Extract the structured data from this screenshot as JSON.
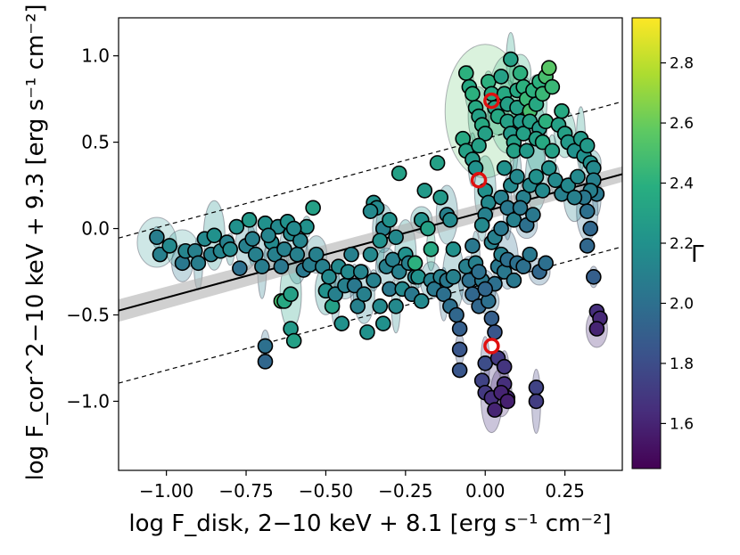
{
  "chart_data": {
    "type": "scatter",
    "xlabel": "log F_disk, 2−10 keV + 8.1  [erg s⁻¹ cm⁻²]",
    "ylabel": "log F_cor^2−10 keV + 9.3  [erg s⁻¹ cm⁻²]",
    "xlim": [
      -1.15,
      0.43
    ],
    "ylim": [
      -1.4,
      1.22
    ],
    "x_ticks": [
      "−1.00",
      "−0.75",
      "−0.50",
      "−0.25",
      "0.00",
      "0.25"
    ],
    "y_ticks": [
      "1.0",
      "0.5",
      "0.0",
      "−0.5",
      "−1.0"
    ],
    "colorbar": {
      "label": "Γ",
      "range": [
        1.45,
        2.95
      ],
      "ticks": [
        "1.6",
        "1.8",
        "2.0",
        "2.2",
        "2.4",
        "2.6",
        "2.8"
      ],
      "colormap": "viridis"
    },
    "fit_line": {
      "slope": 0.5,
      "intercept": 0.1,
      "offsets": [
        -0.42,
        0.0,
        0.42
      ]
    },
    "highlighted": [
      {
        "x": 0.02,
        "y": 0.74
      },
      {
        "x": -0.02,
        "y": 0.28
      },
      {
        "x": 0.02,
        "y": -0.68
      }
    ],
    "points": [
      [
        -1.03,
        -0.05,
        2.08
      ],
      [
        -1.02,
        -0.15,
        2.1
      ],
      [
        -0.99,
        -0.1,
        2.15
      ],
      [
        -0.95,
        -0.2,
        2.05
      ],
      [
        -0.94,
        -0.13,
        2.12
      ],
      [
        -0.91,
        -0.13,
        2.1
      ],
      [
        -0.9,
        -0.2,
        2.08
      ],
      [
        -0.88,
        -0.06,
        2.15
      ],
      [
        -0.86,
        -0.15,
        2.1
      ],
      [
        -0.85,
        -0.04,
        2.2
      ],
      [
        -0.83,
        -0.13,
        2.12
      ],
      [
        -0.81,
        -0.08,
        2.1
      ],
      [
        -0.8,
        -0.12,
        2.15
      ],
      [
        -0.78,
        0.01,
        2.2
      ],
      [
        -0.77,
        -0.23,
        2.0
      ],
      [
        -0.75,
        -0.1,
        2.1
      ],
      [
        -0.74,
        0.05,
        2.25
      ],
      [
        -0.72,
        -0.15,
        2.1
      ],
      [
        -0.7,
        -0.22,
        2.08
      ],
      [
        -0.69,
        0.03,
        2.2
      ],
      [
        -0.67,
        -0.08,
        2.15
      ],
      [
        -0.66,
        -0.15,
        2.1
      ],
      [
        -0.65,
        0.01,
        2.15
      ],
      [
        -0.64,
        -0.22,
        2.05
      ],
      [
        -0.63,
        -0.12,
        2.1
      ],
      [
        -0.62,
        0.04,
        2.2
      ],
      [
        -0.61,
        -0.03,
        2.15
      ],
      [
        -0.59,
        -0.15,
        2.1
      ],
      [
        -0.58,
        -0.07,
        2.12
      ],
      [
        -0.57,
        -0.24,
        2.05
      ],
      [
        -0.56,
        0.01,
        2.2
      ],
      [
        -0.55,
        -0.21,
        2.08
      ],
      [
        -0.54,
        0.12,
        2.3
      ],
      [
        -0.53,
        -0.15,
        2.1
      ],
      [
        -0.6,
        0.0,
        2.15
      ],
      [
        -0.68,
        -0.04,
        2.12
      ],
      [
        -0.73,
        -0.06,
        2.1
      ],
      [
        -0.64,
        -0.42,
        2.5
      ],
      [
        -0.63,
        -0.42,
        2.35
      ],
      [
        -0.61,
        -0.38,
        2.3
      ],
      [
        -0.61,
        -0.58,
        2.25
      ],
      [
        -0.6,
        -0.65,
        2.3
      ],
      [
        -0.69,
        -0.68,
        2.0
      ],
      [
        -0.69,
        -0.77,
        1.95
      ],
      [
        -0.51,
        -0.22,
        2.1
      ],
      [
        -0.5,
        -0.36,
        2.2
      ],
      [
        -0.49,
        -0.28,
        2.15
      ],
      [
        -0.48,
        -0.45,
        2.3
      ],
      [
        -0.47,
        -0.38,
        2.1
      ],
      [
        -0.46,
        -0.22,
        2.15
      ],
      [
        -0.45,
        -0.55,
        2.2
      ],
      [
        -0.44,
        -0.33,
        2.1
      ],
      [
        -0.43,
        -0.25,
        2.15
      ],
      [
        -0.42,
        -0.15,
        2.1
      ],
      [
        -0.41,
        -0.33,
        2.05
      ],
      [
        -0.4,
        -0.45,
        2.1
      ],
      [
        -0.39,
        -0.25,
        2.12
      ],
      [
        -0.38,
        -0.38,
        2.1
      ],
      [
        -0.37,
        -0.6,
        2.2
      ],
      [
        -0.36,
        -0.15,
        2.15
      ],
      [
        -0.35,
        -0.3,
        2.1
      ],
      [
        -0.33,
        -0.45,
        2.15
      ],
      [
        -0.32,
        -0.55,
        2.2
      ],
      [
        -0.31,
        -0.22,
        2.1
      ],
      [
        -0.3,
        -0.35,
        2.05
      ],
      [
        -0.29,
        -0.18,
        2.1
      ],
      [
        -0.28,
        -0.45,
        2.15
      ],
      [
        -0.27,
        -0.25,
        2.1
      ],
      [
        -0.26,
        -0.35,
        2.15
      ],
      [
        -0.25,
        -0.15,
        2.2
      ],
      [
        -0.24,
        -0.2,
        2.1
      ],
      [
        -0.23,
        -0.38,
        2.05
      ],
      [
        -0.22,
        -0.28,
        2.1
      ],
      [
        -0.35,
        0.15,
        2.2
      ],
      [
        -0.34,
        0.12,
        2.15
      ],
      [
        -0.32,
        0.0,
        2.1
      ],
      [
        -0.3,
        0.05,
        2.2
      ],
      [
        -0.28,
        -0.05,
        2.15
      ],
      [
        -0.33,
        -0.07,
        2.2
      ],
      [
        -0.36,
        0.1,
        2.15
      ],
      [
        -0.27,
        0.32,
        2.3
      ],
      [
        -0.2,
        0.05,
        2.2
      ],
      [
        -0.19,
        0.22,
        2.25
      ],
      [
        -0.18,
        0.0,
        2.3
      ],
      [
        -0.17,
        -0.12,
        2.35
      ],
      [
        -0.15,
        0.38,
        2.3
      ],
      [
        -0.14,
        0.18,
        2.25
      ],
      [
        -0.12,
        0.08,
        2.1
      ],
      [
        -0.11,
        0.05,
        2.15
      ],
      [
        -0.1,
        -0.12,
        2.2
      ],
      [
        -0.21,
        -0.28,
        2.2
      ],
      [
        -0.2,
        -0.42,
        2.15
      ],
      [
        -0.22,
        -0.2,
        2.4
      ],
      [
        -0.17,
        -0.3,
        2.1
      ],
      [
        -0.16,
        -0.35,
        2.05
      ],
      [
        -0.14,
        -0.28,
        2.1
      ],
      [
        -0.13,
        -0.38,
        2.0
      ],
      [
        -0.12,
        -0.3,
        2.05
      ],
      [
        -0.11,
        -0.45,
        2.0
      ],
      [
        -0.1,
        -0.28,
        2.1
      ],
      [
        -0.09,
        -0.5,
        1.95
      ],
      [
        -0.08,
        -0.58,
        1.9
      ],
      [
        -0.08,
        -0.7,
        1.85
      ],
      [
        -0.08,
        -0.82,
        1.85
      ],
      [
        -0.06,
        -0.22,
        2.1
      ],
      [
        -0.05,
        -0.3,
        2.0
      ],
      [
        -0.04,
        -0.38,
        1.95
      ],
      [
        -0.04,
        -0.1,
        2.05
      ],
      [
        -0.03,
        -0.2,
        2.1
      ],
      [
        -0.02,
        -0.45,
        1.95
      ],
      [
        -0.01,
        -0.3,
        2.05
      ],
      [
        0.01,
        -0.42,
        2.0
      ],
      [
        0.02,
        -0.08,
        2.1
      ],
      [
        0.03,
        -0.32,
        2.0
      ],
      [
        0.04,
        -0.22,
        2.05
      ],
      [
        0.05,
        -0.15,
        2.1
      ],
      [
        0.06,
        -0.25,
        2.05
      ],
      [
        0.07,
        -0.18,
        2.0
      ],
      [
        0.09,
        -0.3,
        2.05
      ],
      [
        0.1,
        -0.2,
        2.0
      ],
      [
        0.03,
        -0.05,
        2.1
      ],
      [
        0.05,
        0.0,
        2.05
      ],
      [
        -0.02,
        -0.25,
        2.0
      ],
      [
        0.0,
        -0.35,
        1.95
      ],
      [
        0.02,
        -0.52,
        1.9
      ],
      [
        0.03,
        -0.6,
        1.85
      ],
      [
        0.0,
        -0.78,
        1.8
      ],
      [
        -0.01,
        -0.88,
        1.75
      ],
      [
        0.0,
        -0.95,
        1.7
      ],
      [
        0.02,
        -0.98,
        1.65
      ],
      [
        0.03,
        -1.05,
        1.6
      ],
      [
        0.04,
        -0.75,
        1.7
      ],
      [
        0.06,
        -0.8,
        1.68
      ],
      [
        0.06,
        -0.9,
        1.65
      ],
      [
        0.07,
        -0.98,
        1.62
      ],
      [
        0.05,
        -0.95,
        1.6
      ],
      [
        0.07,
        -1.0,
        1.58
      ],
      [
        0.16,
        -0.92,
        1.75
      ],
      [
        0.16,
        -1.0,
        1.72
      ],
      [
        0.12,
        -0.22,
        2.0
      ],
      [
        0.14,
        -0.15,
        2.05
      ],
      [
        0.17,
        -0.25,
        1.95
      ],
      [
        0.19,
        -0.2,
        2.0
      ],
      [
        -0.06,
        0.9,
        2.4
      ],
      [
        -0.05,
        0.82,
        2.35
      ],
      [
        -0.04,
        0.78,
        2.4
      ],
      [
        -0.03,
        0.7,
        2.35
      ],
      [
        -0.02,
        0.65,
        2.3
      ],
      [
        -0.01,
        0.6,
        2.35
      ],
      [
        0.0,
        0.55,
        2.3
      ],
      [
        0.01,
        0.85,
        2.4
      ],
      [
        0.02,
        0.78,
        2.35
      ],
      [
        0.03,
        0.7,
        2.3
      ],
      [
        0.04,
        0.65,
        2.35
      ],
      [
        -0.07,
        0.52,
        2.35
      ],
      [
        -0.06,
        0.45,
        2.3
      ],
      [
        -0.04,
        0.4,
        2.25
      ],
      [
        -0.03,
        0.35,
        2.2
      ],
      [
        -0.02,
        0.48,
        2.3
      ],
      [
        0.0,
        0.22,
        2.2
      ],
      [
        0.01,
        0.15,
        2.15
      ],
      [
        0.0,
        0.08,
        2.1
      ],
      [
        -0.01,
        0.02,
        2.15
      ],
      [
        0.05,
        0.88,
        2.3
      ],
      [
        0.06,
        0.78,
        2.35
      ],
      [
        0.07,
        0.72,
        2.3
      ],
      [
        0.07,
        0.62,
        2.3
      ],
      [
        0.08,
        0.55,
        2.25
      ],
      [
        0.09,
        0.5,
        2.3
      ],
      [
        0.1,
        0.8,
        2.35
      ],
      [
        0.1,
        0.7,
        2.3
      ],
      [
        0.11,
        0.62,
        2.25
      ],
      [
        0.12,
        0.55,
        2.3
      ],
      [
        0.12,
        0.82,
        2.4
      ],
      [
        0.13,
        0.75,
        2.45
      ],
      [
        0.14,
        0.68,
        2.5
      ],
      [
        0.15,
        0.8,
        2.4
      ],
      [
        0.16,
        0.72,
        2.35
      ],
      [
        0.17,
        0.85,
        2.4
      ],
      [
        0.18,
        0.78,
        2.45
      ],
      [
        0.19,
        0.88,
        2.5
      ],
      [
        0.2,
        0.93,
        2.55
      ],
      [
        0.21,
        0.82,
        2.45
      ],
      [
        0.11,
        0.9,
        2.4
      ],
      [
        0.14,
        0.62,
        2.3
      ],
      [
        0.17,
        0.58,
        2.25
      ],
      [
        0.08,
        0.98,
        2.3
      ],
      [
        0.09,
        0.45,
        2.3
      ],
      [
        0.13,
        0.45,
        2.25
      ],
      [
        0.16,
        0.52,
        2.3
      ],
      [
        0.18,
        0.5,
        2.35
      ],
      [
        0.19,
        0.62,
        2.4
      ],
      [
        0.21,
        0.45,
        2.3
      ],
      [
        0.23,
        0.6,
        2.3
      ],
      [
        0.24,
        0.68,
        2.35
      ],
      [
        0.25,
        0.55,
        2.3
      ],
      [
        0.26,
        0.5,
        2.25
      ],
      [
        0.28,
        0.45,
        2.2
      ],
      [
        0.3,
        0.52,
        2.25
      ],
      [
        0.31,
        0.42,
        2.2
      ],
      [
        0.32,
        0.48,
        2.25
      ],
      [
        0.33,
        0.38,
        2.2
      ],
      [
        0.34,
        0.35,
        2.15
      ],
      [
        0.34,
        0.28,
        2.1
      ],
      [
        0.35,
        0.2,
        2.05
      ],
      [
        0.33,
        0.22,
        2.1
      ],
      [
        0.31,
        0.18,
        2.05
      ],
      [
        0.32,
        0.1,
        2.0
      ],
      [
        0.33,
        0.0,
        1.95
      ],
      [
        0.32,
        -0.1,
        1.95
      ],
      [
        0.34,
        -0.28,
        1.9
      ],
      [
        0.35,
        -0.48,
        1.65
      ],
      [
        0.36,
        -0.52,
        1.62
      ],
      [
        0.35,
        -0.58,
        1.6
      ],
      [
        0.06,
        0.35,
        2.2
      ],
      [
        0.08,
        0.25,
        2.15
      ],
      [
        0.1,
        0.3,
        2.15
      ],
      [
        0.12,
        0.18,
        2.1
      ],
      [
        0.14,
        0.25,
        2.15
      ],
      [
        0.16,
        0.3,
        2.2
      ],
      [
        0.18,
        0.22,
        2.15
      ],
      [
        0.2,
        0.35,
        2.2
      ],
      [
        0.22,
        0.28,
        2.15
      ],
      [
        0.24,
        0.2,
        2.1
      ],
      [
        0.26,
        0.25,
        2.15
      ],
      [
        0.28,
        0.18,
        2.1
      ],
      [
        0.29,
        0.3,
        2.15
      ],
      [
        0.05,
        0.18,
        2.1
      ],
      [
        0.07,
        0.12,
        2.05
      ],
      [
        0.09,
        0.05,
        2.1
      ],
      [
        0.11,
        0.12,
        2.05
      ],
      [
        0.13,
        0.02,
        2.0
      ],
      [
        0.15,
        0.08,
        2.05
      ]
    ]
  }
}
